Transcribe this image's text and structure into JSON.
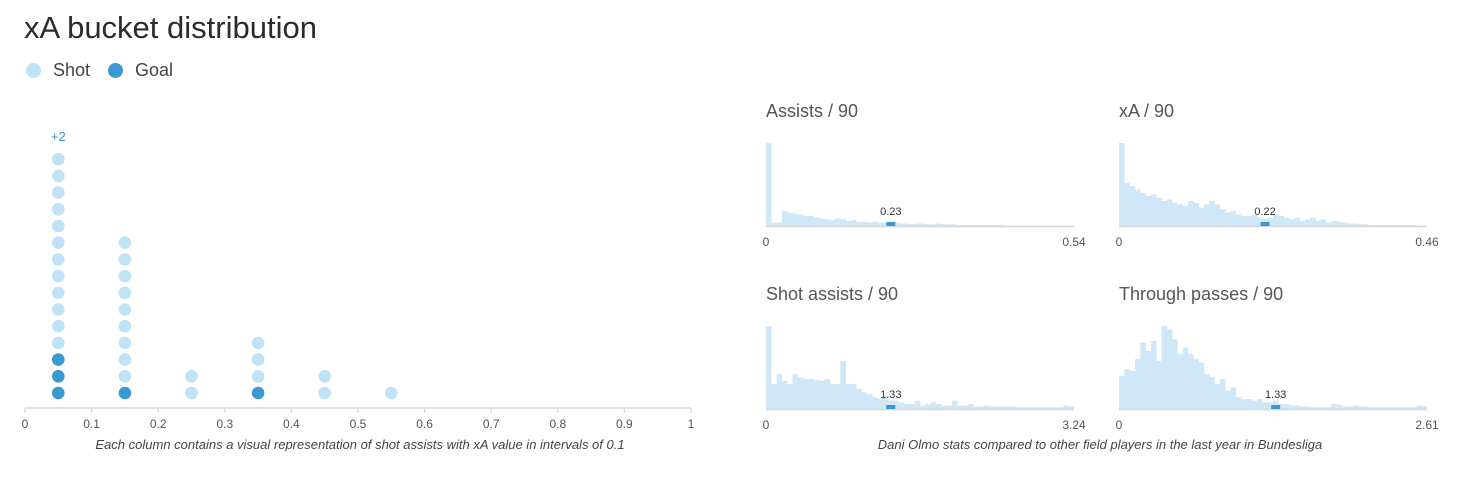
{
  "title": "xA bucket distribution",
  "legend": [
    {
      "label": "Shot",
      "color": "#bfe2f4"
    },
    {
      "label": "Goal",
      "color": "#3b98d1"
    }
  ],
  "chart_data": [
    {
      "type": "scatter",
      "chart": "dot-column",
      "buckets": [
        0.05,
        0.15,
        0.25,
        0.35,
        0.45,
        0.55
      ],
      "shots": [
        15,
        10,
        2,
        4,
        2,
        1
      ],
      "goals": [
        3,
        1,
        0,
        1,
        0,
        0
      ],
      "overflow": [
        {
          "bucket": 0.05,
          "label": "+2"
        }
      ],
      "xlim": [
        0,
        1
      ],
      "xticks": [
        "0",
        "0.1",
        "0.2",
        "0.3",
        "0.4",
        "0.5",
        "0.6",
        "0.7",
        "0.8",
        "0.9",
        "1"
      ],
      "caption": "Each column contains a visual representation of shot assists with xA value in intervals of 0.1"
    },
    {
      "type": "bar",
      "title": "Assists / 90",
      "xmin_label": "0",
      "xmax_label": "0.54",
      "player_value": "0.23",
      "player_bin": 23,
      "values": [
        100,
        4,
        4,
        18,
        16,
        15,
        14,
        12,
        12,
        10,
        9,
        8,
        7,
        9,
        8,
        6,
        7,
        5,
        5,
        4,
        5,
        4,
        4,
        3,
        4,
        3,
        3,
        2,
        3,
        3,
        2,
        2,
        3,
        2,
        2,
        2,
        1,
        1,
        1,
        1,
        1,
        1,
        1,
        1,
        1,
        0,
        0,
        0,
        0,
        0,
        0,
        0,
        0,
        0,
        0,
        0,
        0,
        0
      ]
    },
    {
      "type": "bar",
      "title": "xA / 90",
      "xmin_label": "0",
      "xmax_label": "0.46",
      "player_value": "0.22",
      "player_bin": 27,
      "values": [
        100,
        52,
        48,
        44,
        40,
        36,
        38,
        34,
        30,
        32,
        28,
        26,
        24,
        30,
        28,
        22,
        26,
        30,
        26,
        20,
        16,
        18,
        14,
        12,
        12,
        14,
        10,
        8,
        10,
        14,
        12,
        10,
        8,
        10,
        6,
        8,
        10,
        6,
        8,
        4,
        6,
        5,
        4,
        3,
        3,
        2,
        2,
        1,
        1,
        1,
        1,
        1,
        1,
        1,
        1,
        1,
        0,
        0
      ]
    },
    {
      "type": "bar",
      "title": "Shot assists / 90",
      "xmin_label": "0",
      "xmax_label": "3.24",
      "player_value": "1.33",
      "player_bin": 23,
      "values": [
        100,
        30,
        42,
        34,
        30,
        42,
        38,
        36,
        36,
        35,
        34,
        36,
        30,
        30,
        58,
        30,
        30,
        24,
        20,
        18,
        14,
        12,
        16,
        10,
        10,
        8,
        6,
        6,
        10,
        4,
        6,
        8,
        6,
        4,
        4,
        10,
        4,
        4,
        6,
        3,
        3,
        4,
        3,
        3,
        3,
        3,
        3,
        2,
        2,
        2,
        2,
        2,
        2,
        2,
        2,
        2,
        4,
        3
      ]
    },
    {
      "type": "bar",
      "title": "Through passes / 90",
      "xmin_label": "0",
      "xmax_label": "2.61",
      "player_value": "1.33",
      "player_bin": 29,
      "values": [
        40,
        48,
        46,
        60,
        80,
        70,
        82,
        58,
        100,
        96,
        84,
        66,
        74,
        66,
        60,
        56,
        42,
        38,
        30,
        36,
        22,
        26,
        14,
        12,
        12,
        10,
        12,
        8,
        8,
        10,
        6,
        6,
        4,
        4,
        3,
        3,
        2,
        2,
        2,
        2,
        6,
        5,
        3,
        3,
        4,
        3,
        3,
        2,
        2,
        2,
        2,
        2,
        2,
        2,
        2,
        2,
        4,
        3
      ]
    }
  ],
  "caption_right": "Dani Olmo stats compared to other field players in the last year in Bundesliga"
}
